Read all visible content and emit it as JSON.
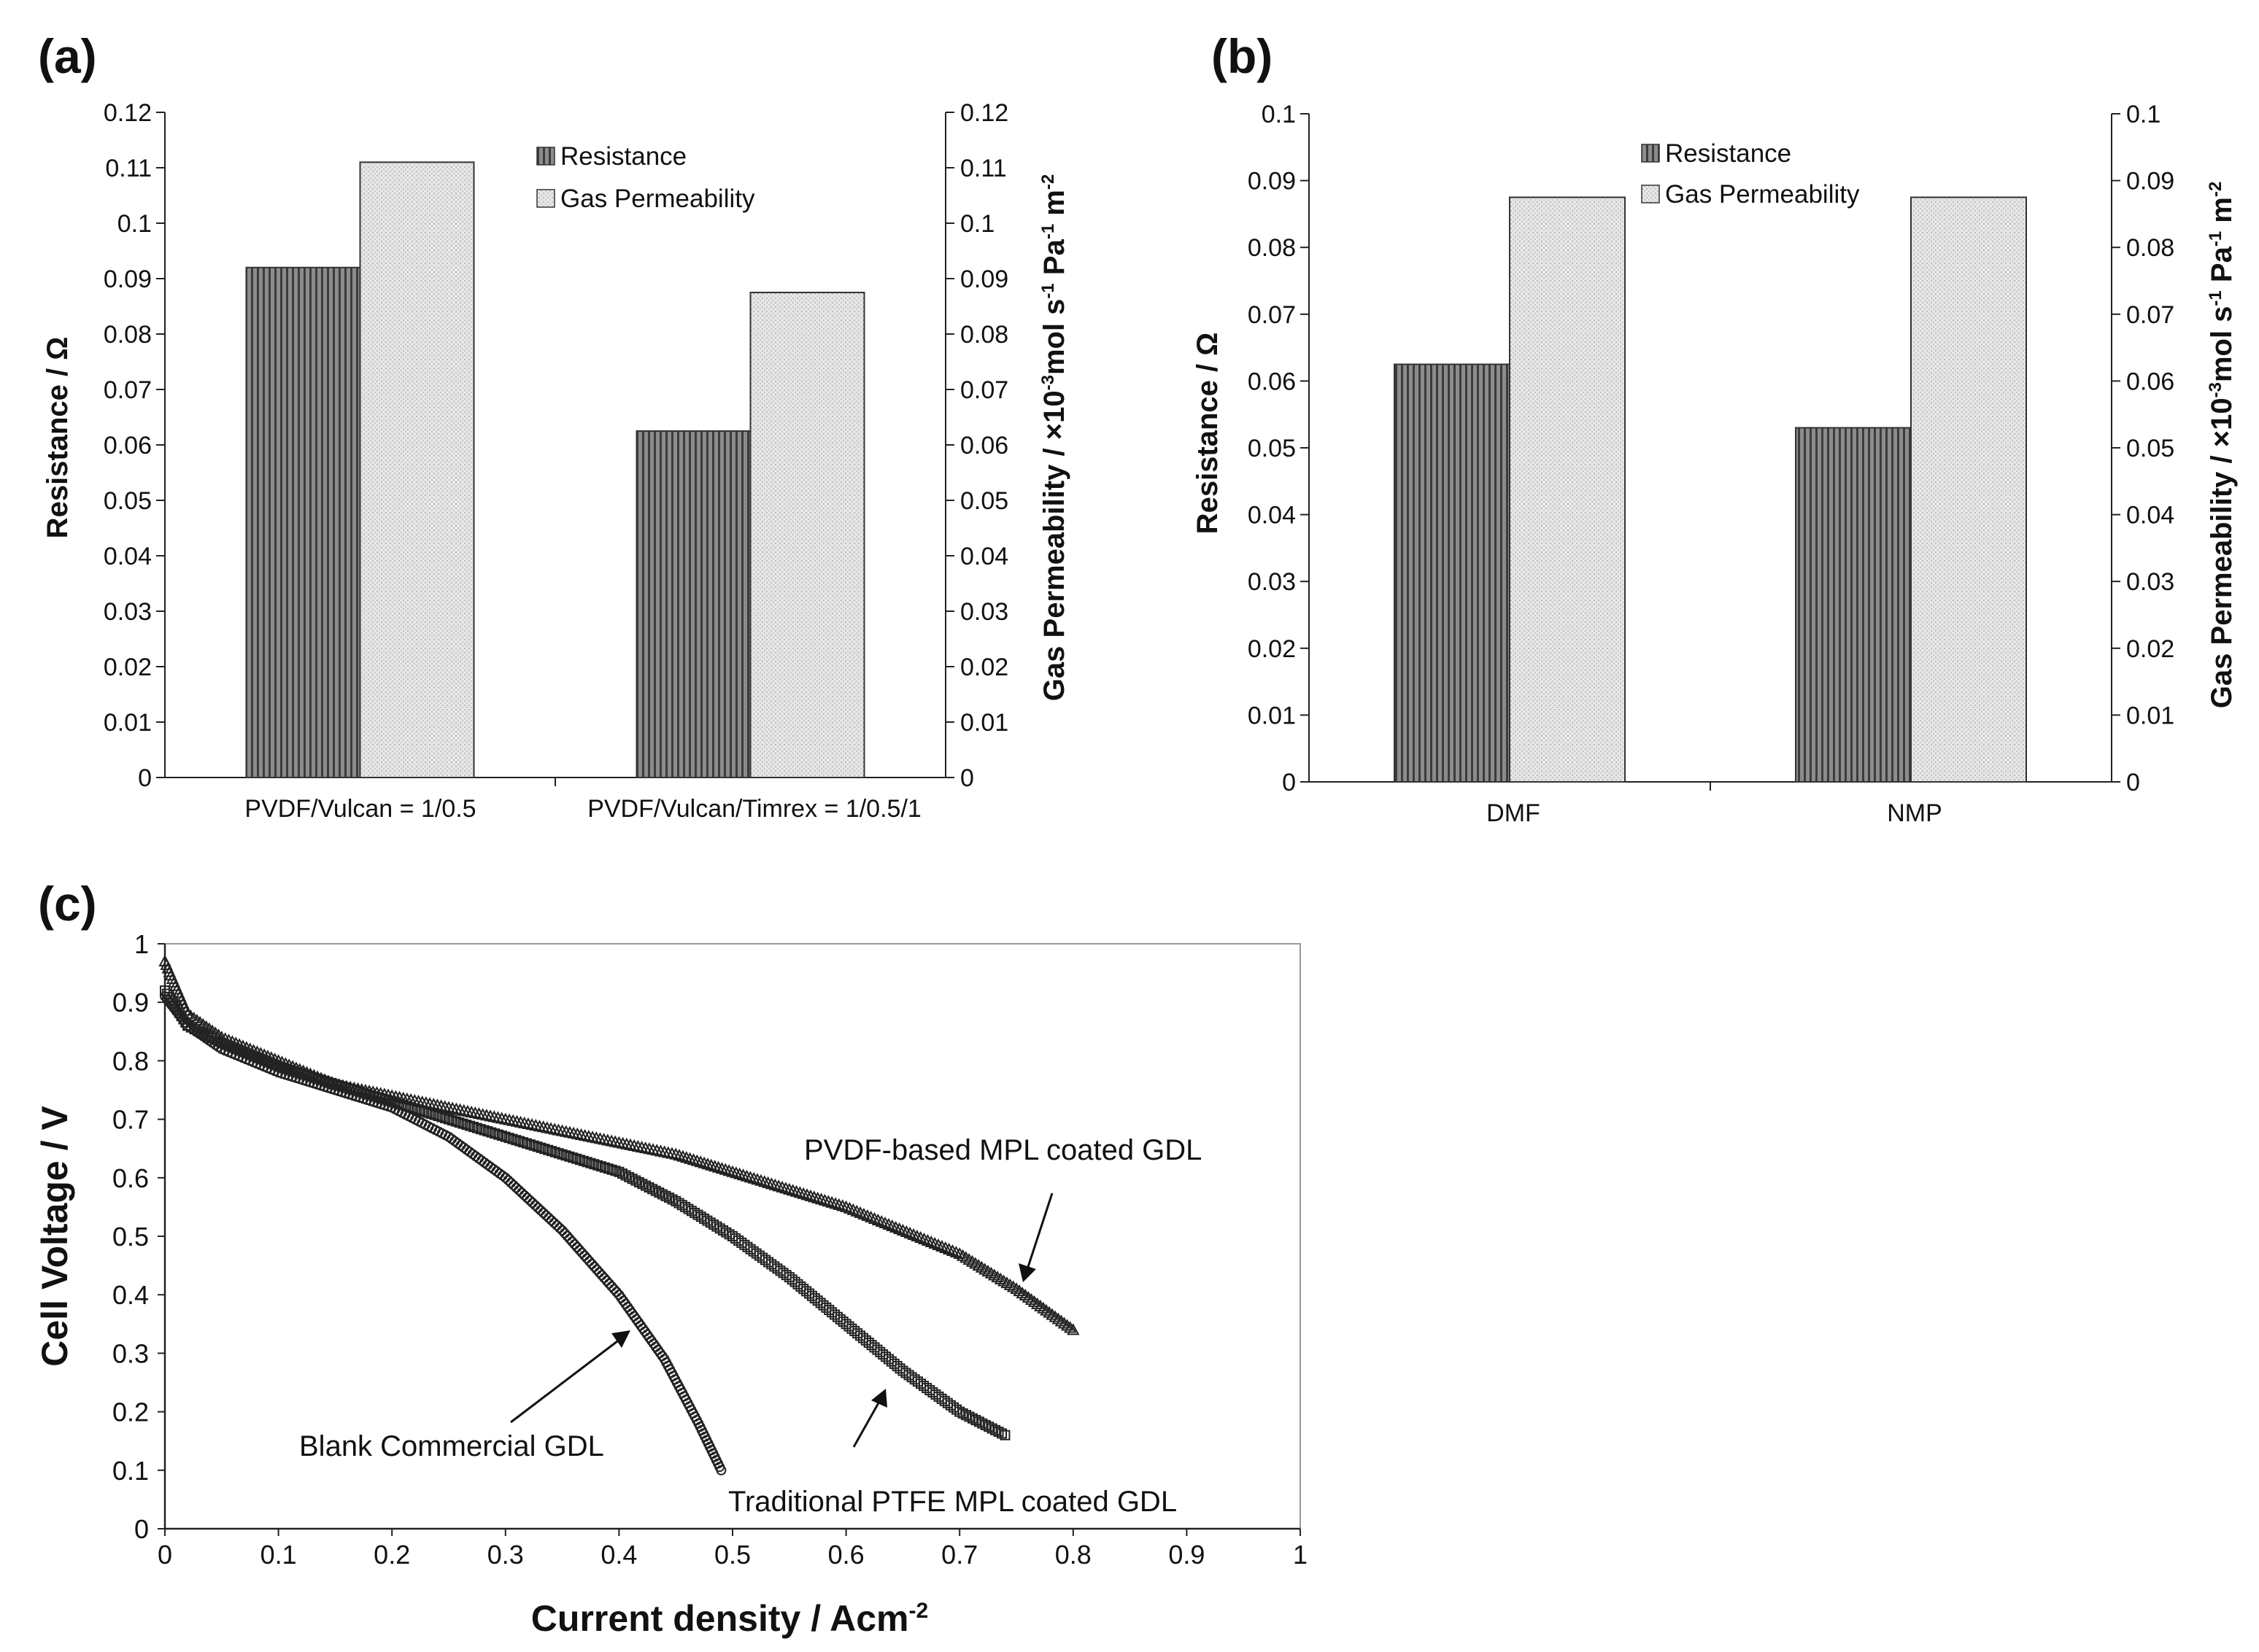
{
  "chart_data": [
    {
      "panel": "(a)",
      "type": "bar",
      "categories": [
        "PVDF/Vulcan = 1/0.5",
        "PVDF/Vulcan/Timrex = 1/0.5/1"
      ],
      "series": [
        {
          "name": "Resistance",
          "values": [
            0.092,
            0.0625
          ]
        },
        {
          "name": "Gas Permeability",
          "values": [
            0.111,
            0.0875
          ]
        }
      ],
      "ylabel": "Resistance / Ω",
      "y2label_main": "Gas Permeability / ×10",
      "y2label_sup1": "-3",
      "y2label_mid": "mol s",
      "y2label_sup2": "-1",
      "y2label_mid2": " Pa",
      "y2label_sup3": "-1",
      "y2label_end": " m",
      "y2label_sup4": "-2",
      "ylim": [
        0,
        0.12
      ],
      "y2lim": [
        0,
        0.12
      ],
      "yticks": [
        "0",
        "0.01",
        "0.02",
        "0.03",
        "0.04",
        "0.05",
        "0.06",
        "0.07",
        "0.08",
        "0.09",
        "0.1",
        "0.11",
        "0.12"
      ],
      "legend_position": "top-right"
    },
    {
      "panel": "(b)",
      "type": "bar",
      "categories": [
        "DMF",
        "NMP"
      ],
      "series": [
        {
          "name": "Resistance",
          "values": [
            0.0625,
            0.053
          ]
        },
        {
          "name": "Gas Permeability",
          "values": [
            0.0875,
            0.0875
          ]
        }
      ],
      "ylabel": "Resistance / Ω",
      "y2label_main": "Gas Permeability / ×10",
      "y2label_sup1": "-3",
      "y2label_mid": "mol s",
      "y2label_sup2": "-1",
      "y2label_mid2": " Pa",
      "y2label_sup3": "-1",
      "y2label_end": " m",
      "y2label_sup4": "-2",
      "ylim": [
        0,
        0.1
      ],
      "y2lim": [
        0,
        0.1
      ],
      "yticks": [
        "0",
        "0.01",
        "0.02",
        "0.03",
        "0.04",
        "0.05",
        "0.06",
        "0.07",
        "0.08",
        "0.09",
        "0.1"
      ],
      "legend_position": "top-center"
    },
    {
      "panel": "(c)",
      "type": "scatter",
      "xlabel_main": "Current density / Acm",
      "xlabel_sup": "-2",
      "ylabel": "Cell Voltage / V",
      "xlim": [
        0,
        1
      ],
      "ylim": [
        0,
        1
      ],
      "xticks": [
        "0",
        "0.1",
        "0.2",
        "0.3",
        "0.4",
        "0.5",
        "0.6",
        "0.7",
        "0.8",
        "0.9",
        "1"
      ],
      "yticks": [
        "0",
        "0.1",
        "0.2",
        "0.3",
        "0.4",
        "0.5",
        "0.6",
        "0.7",
        "0.8",
        "0.9",
        "1"
      ],
      "series": [
        {
          "name": "Blank Commercial GDL",
          "marker": "circle",
          "x": [
            0.0,
            0.02,
            0.05,
            0.1,
            0.15,
            0.2,
            0.25,
            0.3,
            0.35,
            0.4,
            0.44,
            0.47,
            0.49
          ],
          "y": [
            0.91,
            0.86,
            0.82,
            0.78,
            0.75,
            0.72,
            0.67,
            0.6,
            0.51,
            0.4,
            0.29,
            0.18,
            0.1
          ]
        },
        {
          "name": "Traditional PTFE MPL coated GDL",
          "marker": "square",
          "x": [
            0.0,
            0.02,
            0.05,
            0.1,
            0.15,
            0.2,
            0.25,
            0.3,
            0.35,
            0.4,
            0.45,
            0.5,
            0.55,
            0.6,
            0.65,
            0.7,
            0.74
          ],
          "y": [
            0.92,
            0.86,
            0.83,
            0.79,
            0.76,
            0.73,
            0.7,
            0.67,
            0.64,
            0.61,
            0.56,
            0.5,
            0.43,
            0.35,
            0.27,
            0.2,
            0.16
          ]
        },
        {
          "name": "PVDF-based MPL coated GDL",
          "marker": "triangle",
          "x": [
            0.0,
            0.02,
            0.05,
            0.1,
            0.15,
            0.2,
            0.25,
            0.3,
            0.35,
            0.4,
            0.45,
            0.5,
            0.55,
            0.6,
            0.65,
            0.7,
            0.75,
            0.8
          ],
          "y": [
            0.97,
            0.88,
            0.84,
            0.8,
            0.76,
            0.74,
            0.72,
            0.7,
            0.68,
            0.66,
            0.64,
            0.61,
            0.58,
            0.55,
            0.51,
            0.47,
            0.41,
            0.34
          ]
        }
      ],
      "annotations": [
        "PVDF-based MPL coated GDL",
        "Blank Commercial GDL",
        "Traditional PTFE MPL coated GDL"
      ]
    }
  ],
  "labels": {
    "a": "(a)",
    "b": "(b)",
    "c": "(c)"
  }
}
